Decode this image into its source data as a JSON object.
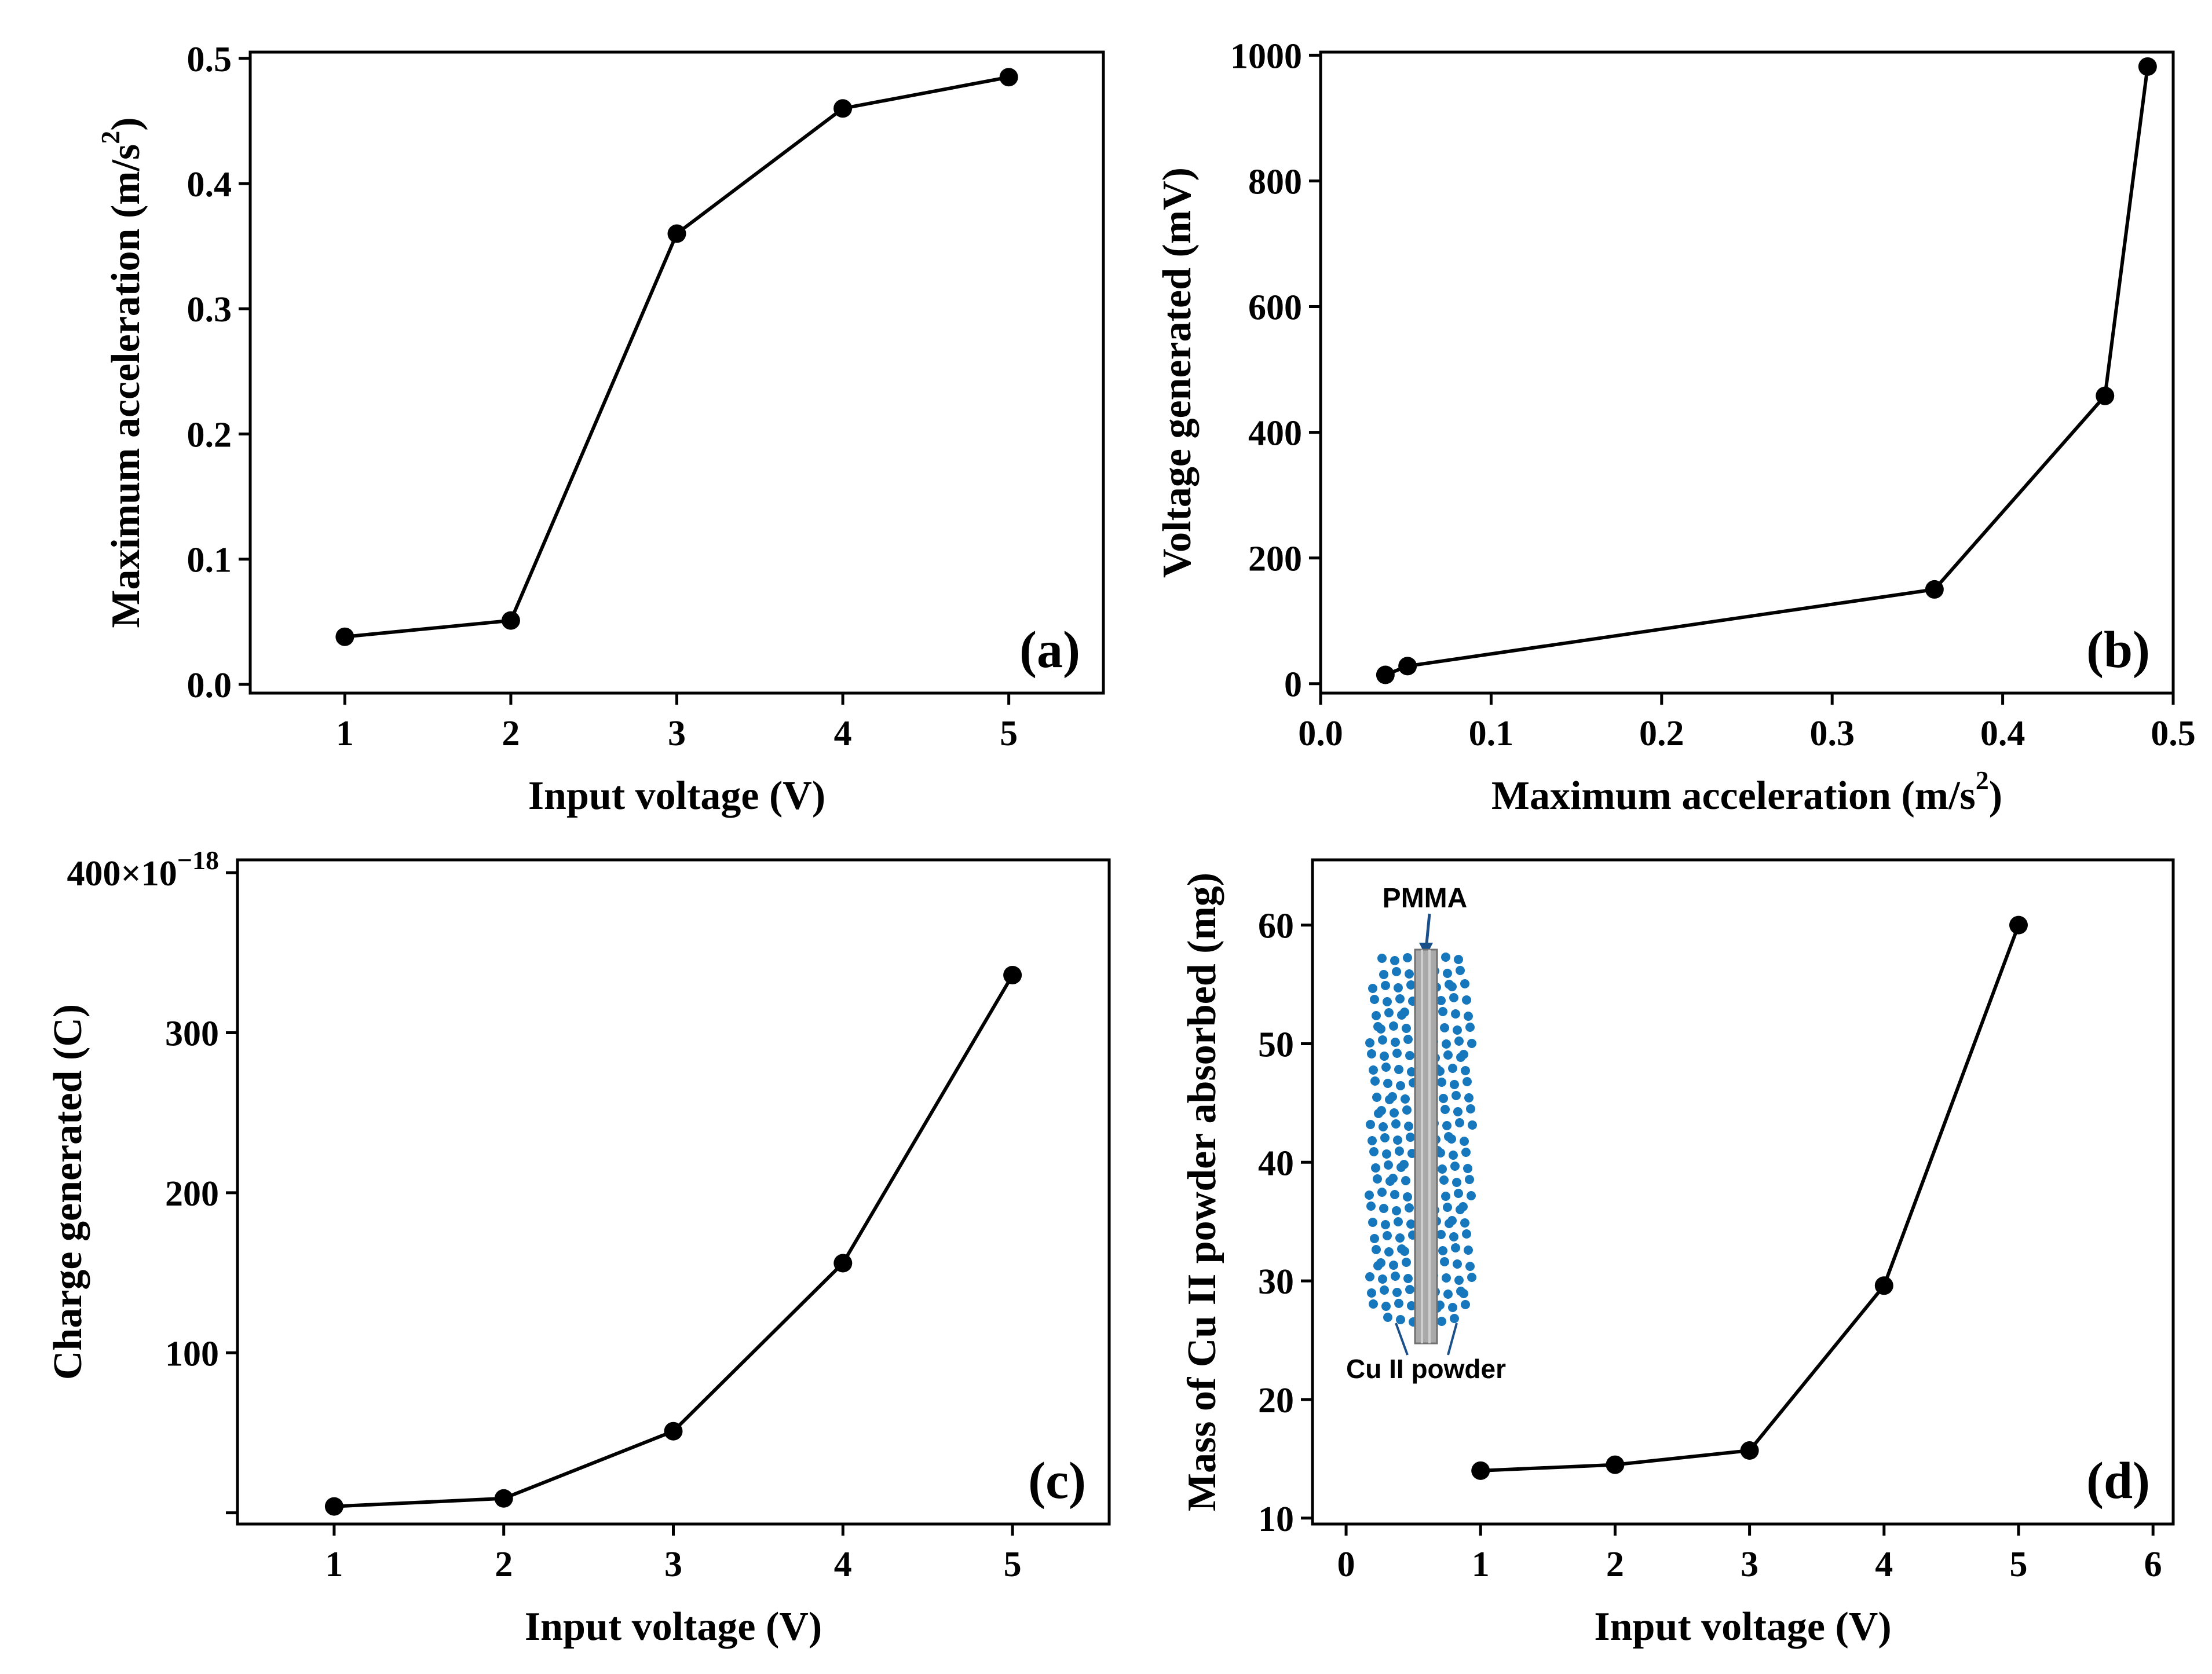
{
  "chart_data": [
    {
      "id": "a",
      "type": "line",
      "panel_label": "(a)",
      "xlabel": "Input voltage (V)",
      "ylabel_main": "Maximum acceleration (m/s",
      "ylabel_sup": "2",
      "ylabel_tail": ")",
      "xlim": [
        0.43,
        5.57
      ],
      "ylim": [
        -0.007,
        0.505
      ],
      "xticks": [
        1,
        2,
        3,
        4,
        5
      ],
      "xtick_labels": [
        "1",
        "2",
        "3",
        "4",
        "5"
      ],
      "yticks": [
        0.0,
        0.1,
        0.2,
        0.3,
        0.4,
        0.5
      ],
      "ytick_labels": [
        "0.0",
        "0.1",
        "0.2",
        "0.3",
        "0.4",
        "0.5"
      ],
      "series": [
        {
          "name": "Maximum acceleration",
          "x": [
            1,
            2,
            3,
            4,
            5
          ],
          "y": [
            0.038,
            0.051,
            0.36,
            0.46,
            0.485
          ]
        }
      ]
    },
    {
      "id": "b",
      "type": "line",
      "panel_label": "(b)",
      "xlabel_main": "Maximum acceleration (m/s",
      "xlabel_sup": "2",
      "xlabel_tail": ")",
      "ylabel": "Voltage generated (mV)",
      "xlim": [
        0.0,
        0.5
      ],
      "ylim": [
        -15,
        1005
      ],
      "xticks": [
        0.0,
        0.1,
        0.2,
        0.3,
        0.4,
        0.5
      ],
      "xtick_labels": [
        "0.0",
        "0.1",
        "0.2",
        "0.3",
        "0.4",
        "0.5"
      ],
      "yticks": [
        0,
        200,
        400,
        600,
        800,
        1000
      ],
      "ytick_labels": [
        "0",
        "200",
        "400",
        "600",
        "800",
        "1000"
      ],
      "series": [
        {
          "name": "Voltage generated",
          "x": [
            0.038,
            0.051,
            0.36,
            0.46,
            0.485
          ],
          "y": [
            14,
            28,
            150,
            458,
            982
          ]
        }
      ]
    },
    {
      "id": "c",
      "type": "line",
      "panel_label": "(c)",
      "xlabel": "Input voltage (V)",
      "ylabel": "Charge generated (C)",
      "xlim": [
        0.43,
        5.57
      ],
      "ylim": [
        -7,
        408
      ],
      "xticks": [
        1,
        2,
        3,
        4,
        5
      ],
      "xtick_labels": [
        "1",
        "2",
        "3",
        "4",
        "5"
      ],
      "yticks": [
        0,
        100,
        200,
        300,
        400
      ],
      "ytick_labels": [
        "",
        "100",
        "200",
        "300",
        ""
      ],
      "top_tick_base": "400×10",
      "top_tick_exp": "−18",
      "series": [
        {
          "name": "Charge generated",
          "x": [
            1,
            2,
            3,
            4,
            5
          ],
          "y": [
            4,
            9,
            51,
            156,
            336
          ]
        }
      ]
    },
    {
      "id": "d",
      "type": "line",
      "panel_label": "(d)",
      "xlabel": "Input voltage (V)",
      "ylabel": "Mass of Cu II powder absorbed (mg)",
      "xlim": [
        -0.25,
        6.15
      ],
      "ylim": [
        9.5,
        65.5
      ],
      "xticks": [
        0,
        1,
        2,
        3,
        4,
        5,
        6
      ],
      "xtick_labels": [
        "0",
        "1",
        "2",
        "3",
        "4",
        "5",
        "6"
      ],
      "yticks": [
        10,
        20,
        30,
        40,
        50,
        60
      ],
      "ytick_labels": [
        "10",
        "20",
        "30",
        "40",
        "50",
        "60"
      ],
      "series": [
        {
          "name": "Mass absorbed",
          "x": [
            1,
            2,
            3,
            4,
            5
          ],
          "y": [
            14,
            14.5,
            15.7,
            29.6,
            60
          ]
        }
      ],
      "inset": {
        "label_top": "PMMA",
        "label_bottom": "Cu II powder",
        "label_top_color": "#e8141c",
        "dot_color": "#1777bd",
        "rod_color": "#a9a9a9",
        "arrow_color": "#1a4f8a"
      }
    }
  ],
  "colors": {
    "line": "#000000",
    "marker": "#000000",
    "axis": "#000000"
  }
}
